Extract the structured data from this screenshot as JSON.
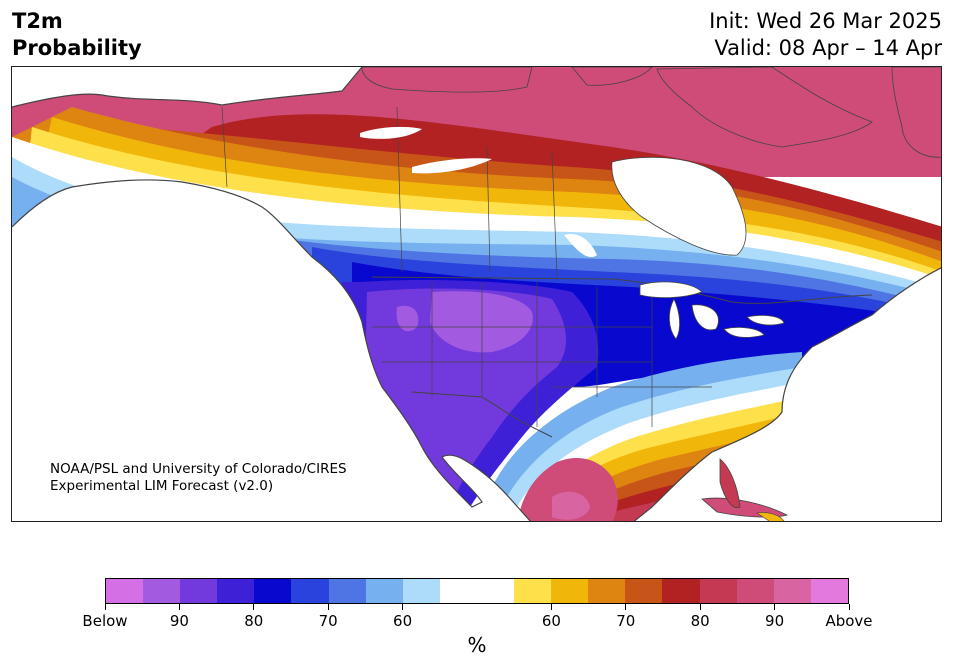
{
  "header": {
    "variable": "T2m",
    "product": "Probability",
    "init": "Init: Wed 26 Mar 2025",
    "valid": "Valid: 08 Apr – 14 Apr"
  },
  "attribution": {
    "line1": "NOAA/PSL and University of Colorado/CIRES",
    "line2": "Experimental LIM Forecast (v2.0)"
  },
  "colorbar": {
    "unit": "%",
    "colors": [
      "#d46fe6",
      "#a25ae0",
      "#7239dd",
      "#3e20d6",
      "#0808cf",
      "#2943dc",
      "#4f74e3",
      "#76b0ef",
      "#addcfb",
      "#ffffff",
      "#ffffff",
      "#fee04a",
      "#f1b60a",
      "#dd8510",
      "#c85518",
      "#b22222",
      "#c33a52",
      "#cf4b78",
      "#d865a2",
      "#e479dd"
    ],
    "tick_labels": [
      "Below",
      "90",
      "80",
      "70",
      "60",
      "60",
      "70",
      "80",
      "90",
      "Above"
    ]
  },
  "map": {
    "region": "North America",
    "highlight_region": "United States",
    "land_color": "#ffffff",
    "border_color": "#444444"
  }
}
